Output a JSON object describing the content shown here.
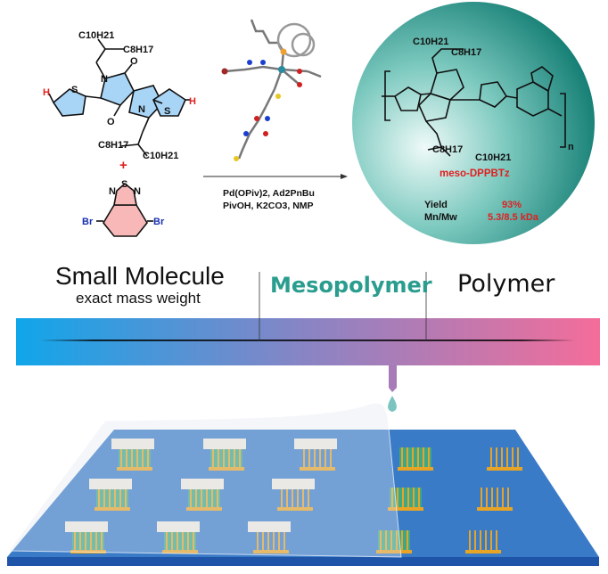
{
  "colors": {
    "accent_teal": "#2a9d8f",
    "bar_start": "#10a6ea",
    "bar_mid": "#9b86c0",
    "bar_end": "#f46d9a",
    "highlight_red": "#e02020",
    "bromine_blue": "#1a2fb0",
    "substrate": "#3a7bc8",
    "electrode": "#e8a424"
  },
  "reactant1": {
    "alkyl_top_a": "C10H21",
    "alkyl_top_b": "C8H17",
    "alkyl_bot_a": "C8H17",
    "alkyl_bot_b": "C10H21",
    "h_left": "H",
    "h_right": "H",
    "s": "S",
    "n": "N",
    "o": "O"
  },
  "plus": "+",
  "reactant2": {
    "br_left": "Br",
    "br_right": "Br",
    "s": "S",
    "n": "N"
  },
  "conditions": {
    "line1": "Pd(OPiv)2, Ad2PnBu",
    "line2": "PivOH, K2CO3, NMP"
  },
  "product": {
    "name": "meso-DPPBTz",
    "repeat": "n",
    "yield_label": "Yield",
    "yield_value": "93%",
    "mw_label": "Mn/Mw",
    "mw_value": "5.3/8.5 kDa",
    "alkyl_top_a": "C10H21",
    "alkyl_top_b": "C8H17",
    "alkyl_bot_a": "C8H17",
    "alkyl_bot_b": "C10H21"
  },
  "scale": {
    "small_molecule": "Small Molecule",
    "small_molecule_sub": "exact mass weight",
    "mesopolymer": "Mesopolymer",
    "polymer": "Polymer"
  },
  "icons": [
    "catalyst-3d-model-icon",
    "reaction-arrow-icon",
    "droplet-icon",
    "device-substrate-illustration"
  ]
}
